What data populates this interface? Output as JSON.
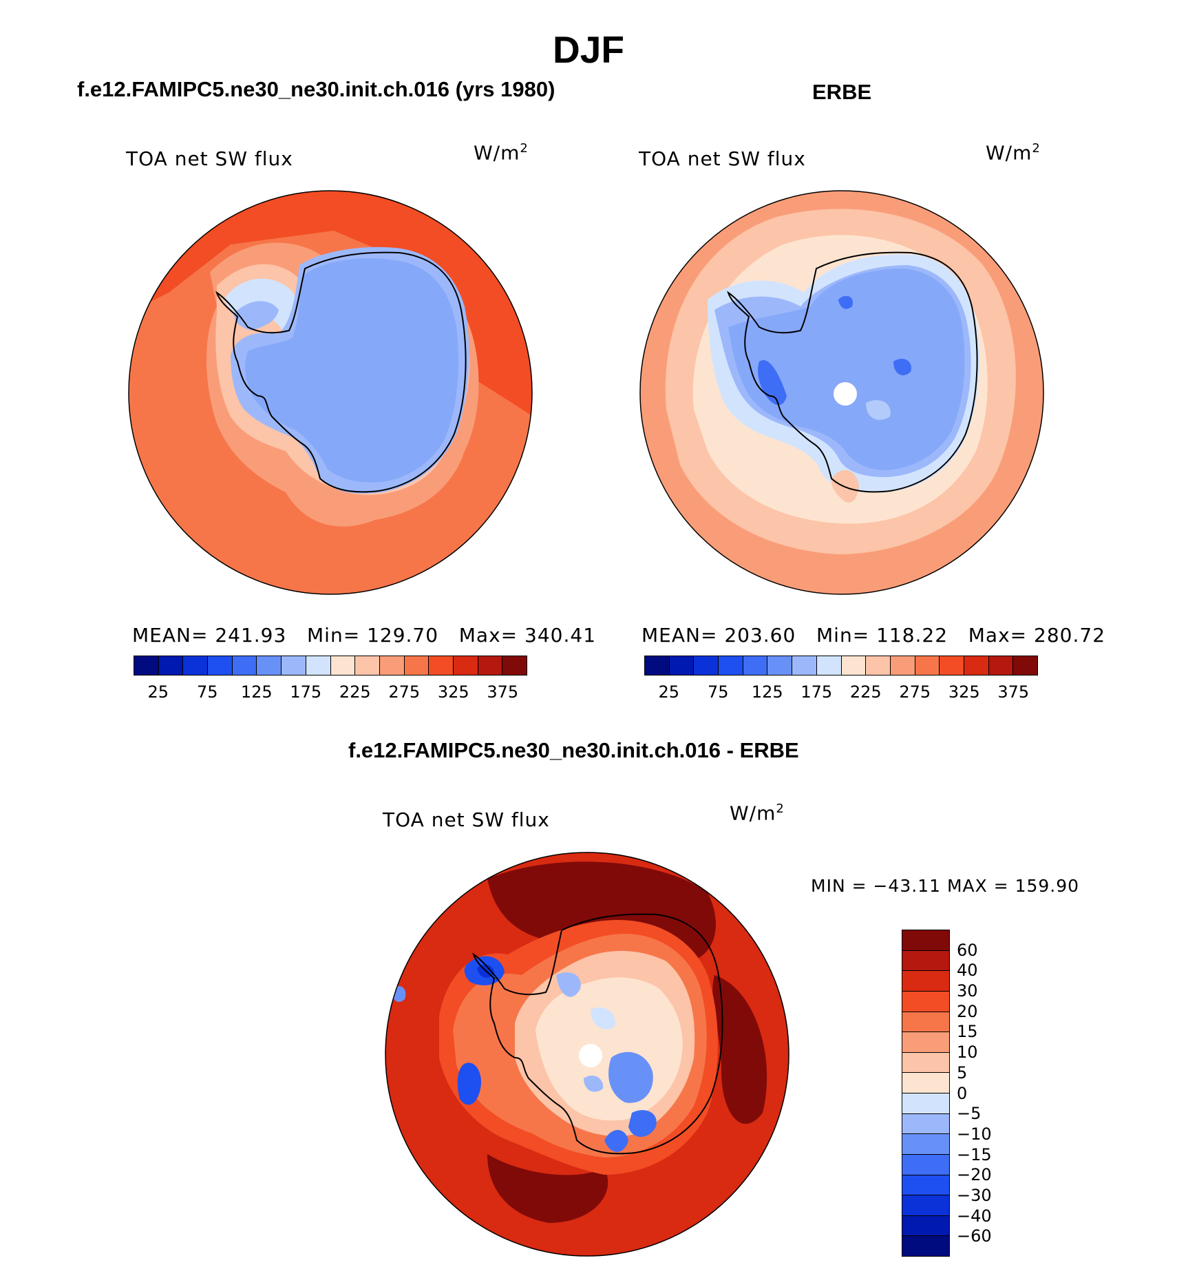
{
  "title": "DJF",
  "panels": [
    {
      "id": "model",
      "header": "f.e12.FAMIPC5.ne30_ne30.init.ch.016 (yrs 1980)",
      "field": "TOA net SW flux",
      "units": "W/m",
      "units_sup": "2",
      "stats": {
        "mean_label": "MEAN=",
        "mean": "241.93",
        "min_label": "Min=",
        "min": "129.70",
        "max_label": "Max=",
        "max": "340.41"
      }
    },
    {
      "id": "obs",
      "header": "ERBE",
      "field": "TOA net SW flux",
      "units": "W/m",
      "units_sup": "2",
      "stats": {
        "mean_label": "MEAN=",
        "mean": "203.60",
        "min_label": "Min=",
        "min": "118.22",
        "max_label": "Max=",
        "max": "280.72"
      }
    },
    {
      "id": "diff",
      "header": "f.e12.FAMIPC5.ne30_ne30.init.ch.016 - ERBE",
      "field": "TOA net SW flux",
      "units": "W/m",
      "units_sup": "2",
      "minmax": "MIN = −43.11 MAX = 159.90"
    }
  ],
  "abs_colorbar": {
    "colors": [
      "#000b80",
      "#0019b0",
      "#0a32d8",
      "#1e4ff0",
      "#3e6ef5",
      "#6891f8",
      "#9cb8fb",
      "#d2e4fd",
      "#fde4d0",
      "#fcc4a8",
      "#f99d78",
      "#f6764a",
      "#f24d24",
      "#d92a12",
      "#b4180e",
      "#800a08"
    ],
    "tick_labels": [
      "25",
      "75",
      "125",
      "175",
      "225",
      "275",
      "325",
      "375"
    ]
  },
  "diff_colorbar": {
    "colors": [
      "#800a08",
      "#b4180e",
      "#d92a12",
      "#f24d24",
      "#f6764a",
      "#f99d78",
      "#fcc4a8",
      "#fde4d0",
      "#d2e4fd",
      "#9cb8fb",
      "#6891f8",
      "#3e6ef5",
      "#1e4ff0",
      "#0a32d8",
      "#0019b0",
      "#000b80"
    ],
    "tick_labels": [
      "60",
      "40",
      "30",
      "20",
      "15",
      "10",
      "5",
      "0",
      "−5",
      "−10",
      "−15",
      "−20",
      "−30",
      "−40",
      "−60"
    ]
  }
}
